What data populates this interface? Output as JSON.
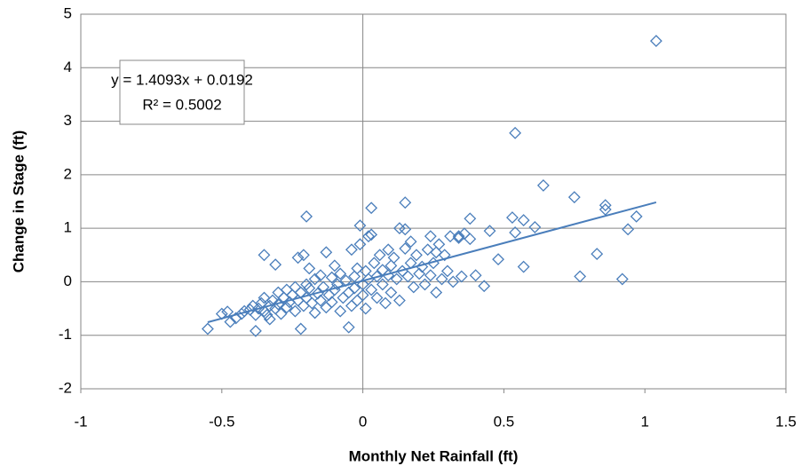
{
  "chart_data": {
    "type": "scatter",
    "x_label": "Monthly Net Rainfall (ft)",
    "y_label": "Change in Stage (ft)",
    "xlim": [
      -1,
      1.5
    ],
    "xticks": [
      -1,
      -0.5,
      0,
      0.5,
      1,
      1.5
    ],
    "ylim": [
      -2,
      5
    ],
    "yticks": [
      -2,
      -1,
      0,
      1,
      2,
      3,
      4,
      5
    ],
    "grid": true,
    "color": "#4a7ebb",
    "annotations": [
      "y = 1.4093x + 0.0192",
      "R² = 0.5002"
    ],
    "trendline": {
      "slope": 1.4093,
      "intercept": 0.0192
    },
    "x": [
      -0.55,
      -0.5,
      -0.48,
      -0.47,
      -0.45,
      -0.43,
      -0.42,
      -0.4,
      -0.39,
      -0.38,
      -0.38,
      -0.37,
      -0.36,
      -0.35,
      -0.35,
      -0.34,
      -0.33,
      -0.33,
      -0.32,
      -0.31,
      -0.31,
      -0.35,
      -0.3,
      -0.3,
      -0.29,
      -0.28,
      -0.27,
      -0.27,
      -0.26,
      -0.25,
      -0.24,
      -0.24,
      -0.23,
      -0.23,
      -0.22,
      -0.22,
      -0.21,
      -0.21,
      -0.2,
      -0.2,
      -0.2,
      -0.19,
      -0.19,
      -0.18,
      -0.17,
      -0.17,
      -0.16,
      -0.15,
      -0.15,
      -0.14,
      -0.13,
      -0.13,
      -0.12,
      -0.11,
      -0.11,
      -0.1,
      -0.1,
      -0.09,
      -0.08,
      -0.08,
      -0.07,
      -0.06,
      -0.05,
      -0.05,
      -0.04,
      -0.04,
      -0.03,
      -0.03,
      -0.02,
      -0.02,
      -0.01,
      -0.01,
      0,
      0,
      0.01,
      0.01,
      0.02,
      0.02,
      0.03,
      0.03,
      0.03,
      0.04,
      0.05,
      0.05,
      0.06,
      0.07,
      0.07,
      0.08,
      0.09,
      0.09,
      0.1,
      0.1,
      0.11,
      0.12,
      0.13,
      0.13,
      0.14,
      0.15,
      0.15,
      0.15,
      0.16,
      0.17,
      0.17,
      0.18,
      0.19,
      0.2,
      0.21,
      0.22,
      0.23,
      0.24,
      0.24,
      0.25,
      0.26,
      0.26,
      0.27,
      0.28,
      0.29,
      0.3,
      0.31,
      0.32,
      0.34,
      0.34,
      0.35,
      0.36,
      0.38,
      0.38,
      0.4,
      0.43,
      0.45,
      0.48,
      0.53,
      0.54,
      0.54,
      0.57,
      0.57,
      0.61,
      0.64,
      0.75,
      0.77,
      0.83,
      0.86,
      0.86,
      0.92,
      0.94,
      0.97,
      1.04
    ],
    "y": [
      -0.88,
      -0.6,
      -0.56,
      -0.75,
      -0.68,
      -0.6,
      -0.55,
      -0.52,
      -0.45,
      -0.92,
      -0.62,
      -0.5,
      -0.4,
      -0.55,
      -0.3,
      -0.62,
      -0.45,
      -0.7,
      -0.35,
      -0.5,
      0.32,
      0.5,
      -0.2,
      -0.42,
      -0.6,
      -0.3,
      -0.48,
      -0.15,
      -0.38,
      -0.25,
      -0.55,
      -0.1,
      -0.35,
      0.45,
      -0.88,
      -0.2,
      0.5,
      -0.45,
      1.22,
      -0.05,
      -0.3,
      0.25,
      -0.12,
      -0.4,
      -0.58,
      0.05,
      -0.22,
      -0.35,
      0.12,
      -0.1,
      0.55,
      -0.48,
      -0.25,
      0.08,
      -0.38,
      -0.15,
      0.3,
      -0.05,
      -0.55,
      0.15,
      -0.3,
      0.02,
      -0.85,
      -0.2,
      0.6,
      -0.45,
      0.1,
      -0.12,
      0.25,
      -0.35,
      1.05,
      0.7,
      -0.05,
      -0.25,
      0.2,
      -0.5,
      0.85,
      0.05,
      1.38,
      0.88,
      -0.15,
      0.35,
      0.1,
      -0.3,
      0.5,
      -0.05,
      0.22,
      -0.4,
      0.6,
      0.12,
      0.3,
      -0.2,
      0.45,
      0.05,
      1.0,
      -0.35,
      0.2,
      1.48,
      0.98,
      0.62,
      0.1,
      0.75,
      0.35,
      -0.1,
      0.5,
      0.15,
      0.28,
      -0.05,
      0.6,
      0.85,
      0.12,
      0.35,
      -0.2,
      0.55,
      0.7,
      0.05,
      0.5,
      0.2,
      0.85,
      0,
      0.82,
      0.85,
      0.1,
      0.9,
      0.8,
      1.18,
      0.12,
      -0.08,
      0.95,
      0.42,
      1.2,
      0.92,
      2.78,
      0.28,
      1.15,
      1.02,
      1.8,
      1.58,
      0.1,
      0.52,
      1.43,
      1.35,
      0.05,
      0.98,
      1.22,
      4.5
    ]
  }
}
